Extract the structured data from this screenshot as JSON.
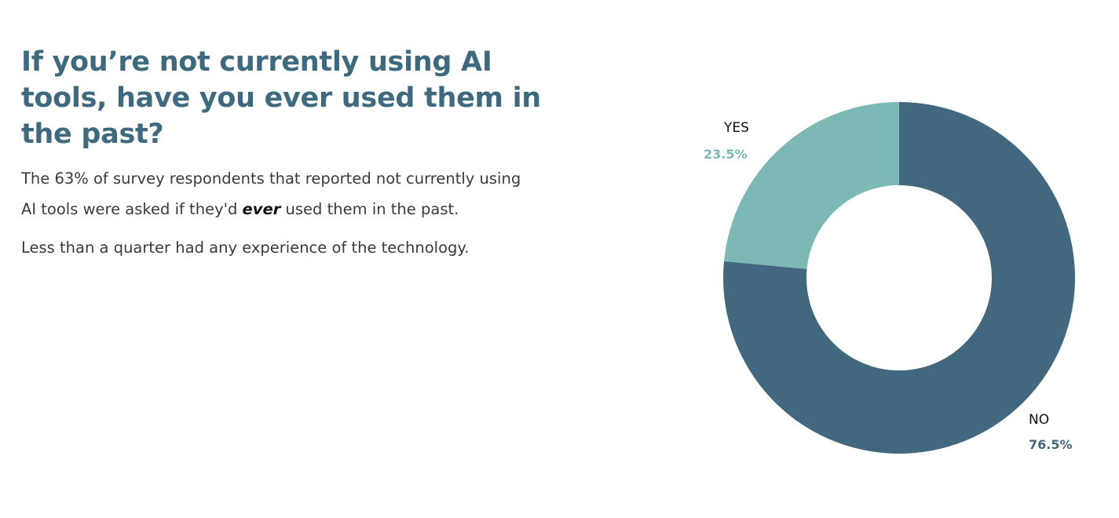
{
  "headline": "If you’re not currently using AI tools, have you ever used them in the past?",
  "body": {
    "p1_before": "The 63% of survey respondents that reported not currently using AI tools were asked if they'd ",
    "p1_emphasis": "ever",
    "p1_after": " used them in the past.",
    "p2": "Less than a quarter had any experience of the technology."
  },
  "colors": {
    "headline": "#3e6a80",
    "yes": "#7bb8b6",
    "no": "#41687e"
  },
  "chart_data": {
    "type": "pie",
    "variant": "donut",
    "title": "If you’re not currently using AI tools, have you ever used them in the past?",
    "categories": [
      "YES",
      "NO"
    ],
    "values": [
      23.5,
      76.5
    ],
    "value_labels": [
      "23.5%",
      "76.5%"
    ],
    "colors": [
      "#7bb8b6",
      "#41687e"
    ],
    "start": "12 o'clock, counter-clockwise for YES",
    "legend": "none; labels placed beside slices"
  }
}
